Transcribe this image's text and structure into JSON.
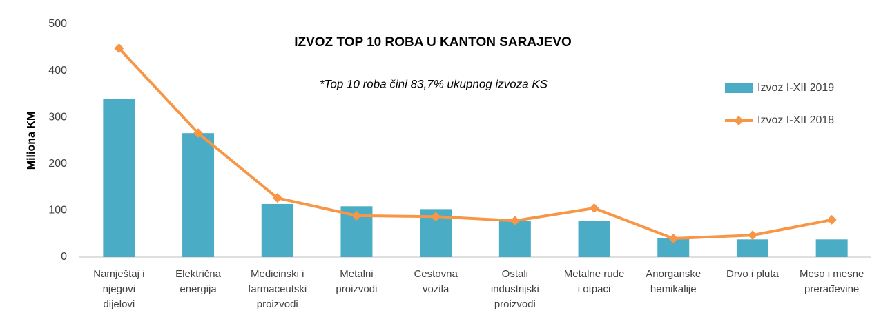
{
  "chart_data": {
    "type": "bar_line",
    "title": "IZVOZ TOP 10 ROBA U KANTON SARAJEVO",
    "subtitle": "*Top 10 roba čini 83,7% ukupnog izvoza KS",
    "y_label": "Miliona KM",
    "categories": [
      "Namještaj i\nnjegovi\ndijelovi",
      "Električna\nenergija",
      "Medicinski i\nfarmaceutski\nproizvodi",
      "Metalni\nproizvodi",
      "Cestovna\nvozila",
      "Ostali\nindustrijski\nproizvodi",
      "Metalne rude\ni otpaci",
      "Anorganske\nhemikalije",
      "Drvo i pluta",
      "Meso i mesne\nprerađevine"
    ],
    "series": [
      {
        "name": "Izvoz I-XII 2019",
        "type": "bar",
        "color": "#4bacc6",
        "values": [
          340,
          266,
          114,
          109,
          103,
          78,
          77,
          40,
          38,
          38
        ]
      },
      {
        "name": "Izvoz I-XII 2018",
        "type": "line",
        "color": "#f79646",
        "values": [
          448,
          266,
          127,
          89,
          87,
          78,
          105,
          40,
          47,
          80
        ]
      }
    ],
    "ylim": [
      0,
      500
    ],
    "yticks": [
      0,
      100,
      200,
      300,
      400,
      500
    ],
    "grid": false
  }
}
